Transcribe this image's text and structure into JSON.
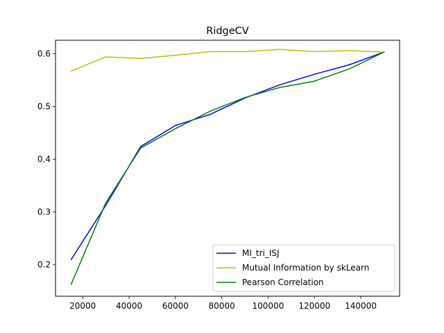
{
  "chart_data": {
    "type": "line",
    "title": "RidgeCV",
    "xlabel": "",
    "ylabel": "",
    "xlim": [
      8250,
      156750
    ],
    "ylim": [
      0.1405,
      0.6255
    ],
    "x_ticks": [
      20000,
      40000,
      60000,
      80000,
      100000,
      120000,
      140000
    ],
    "x_tick_labels": [
      "20000",
      "40000",
      "60000",
      "80000",
      "100000",
      "120000",
      "140000"
    ],
    "y_ticks": [
      0.2,
      0.3,
      0.4,
      0.5,
      0.6
    ],
    "y_tick_labels": [
      "0.2",
      "0.3",
      "0.4",
      "0.5",
      "0.6"
    ],
    "grid": false,
    "legend_position": "lower-right",
    "x": [
      15000,
      30000,
      45000,
      60000,
      75000,
      90000,
      105000,
      120000,
      135000,
      150000
    ],
    "series": [
      {
        "name": "MI_tri_ISJ",
        "color": "#0000ff",
        "values": [
          0.21,
          0.313,
          0.424,
          0.464,
          0.485,
          0.516,
          0.541,
          0.561,
          0.579,
          0.603
        ]
      },
      {
        "name": "Mutual Information by skLearn",
        "color": "#bfbf00",
        "values": [
          0.567,
          0.594,
          0.591,
          0.597,
          0.604,
          0.604,
          0.608,
          0.604,
          0.606,
          0.603
        ]
      },
      {
        "name": "Pearson Correlation",
        "color": "#008000",
        "values": [
          0.163,
          0.318,
          0.421,
          0.458,
          0.491,
          0.517,
          0.536,
          0.548,
          0.571,
          0.603
        ]
      }
    ]
  }
}
